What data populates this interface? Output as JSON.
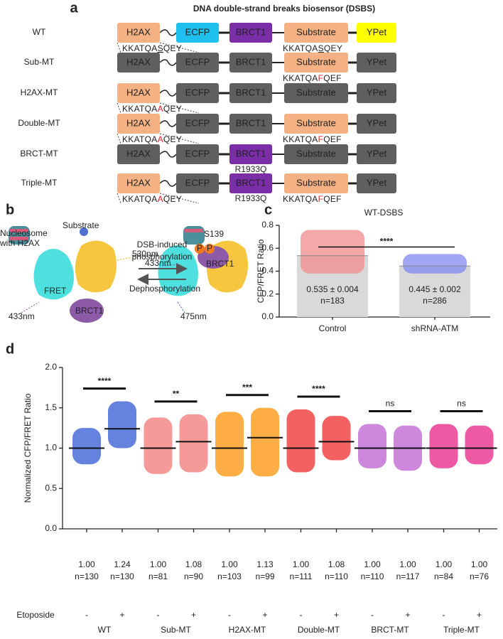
{
  "panel_a": {
    "label": "a",
    "title": "DNA double-strand breaks biosensor (DSBS)",
    "domains": [
      "H2AX",
      "ECFP",
      "BRCT1",
      "Substrate",
      "YPet"
    ],
    "rows": [
      {
        "name": "WT",
        "active": [
          true,
          true,
          true,
          true,
          true
        ],
        "h2ax_seq": {
          "pre": "KKATQA",
          "site": "S",
          "post": "QEY",
          "mutant": false
        },
        "substrate_seq": {
          "pre": "KKATQA",
          "site": "S",
          "post": "QEY",
          "mutant": false
        }
      },
      {
        "name": "Sub-MT",
        "active": [
          false,
          false,
          false,
          true,
          false
        ],
        "substrate_seq": {
          "pre": "KKATQA",
          "site": "F",
          "post": "QEF",
          "mutant": true
        }
      },
      {
        "name": "H2AX-MT",
        "active": [
          true,
          false,
          false,
          false,
          false
        ],
        "h2ax_seq": {
          "pre": "KKATQA",
          "site": "A",
          "post": "QEY",
          "mutant": true
        }
      },
      {
        "name": "Double-MT",
        "active": [
          true,
          false,
          false,
          true,
          false
        ],
        "h2ax_seq": {
          "pre": "KKATQA",
          "site": "A",
          "post": "QEY",
          "mutant": true
        },
        "substrate_seq": {
          "pre": "KKATQA",
          "site": "F",
          "post": "QEF",
          "mutant": true
        }
      },
      {
        "name": "BRCT-MT",
        "active": [
          false,
          false,
          true,
          false,
          false
        ],
        "brct_mutation": "R1933Q"
      },
      {
        "name": "Triple-MT",
        "active": [
          true,
          false,
          true,
          true,
          false
        ],
        "h2ax_seq": {
          "pre": "KKATQA",
          "site": "A",
          "post": "QEY",
          "mutant": true
        },
        "brct_mutation": "R1933Q",
        "substrate_seq": {
          "pre": "KKATQA",
          "site": "F",
          "post": "QEF",
          "mutant": true
        }
      }
    ]
  },
  "panel_b": {
    "label": "b",
    "nucleosome": [
      "Nucleosome",
      "with H2AX"
    ],
    "substrate": "Substrate",
    "emission_yellow": "530nm",
    "fret": "FRET",
    "excitation_left": "433nm",
    "brct_left": "BRCT1",
    "forward": [
      "DSB-induced",
      "phosphorylation"
    ],
    "reverse": "Dephosphorylation",
    "site": "S139",
    "phospho": [
      "P",
      "P"
    ],
    "excitation_right": "433nm",
    "brct_right": "BRCT1",
    "emission_cyan": "475nm"
  },
  "chart_data": [
    {
      "type": "bar",
      "label": "c",
      "title": "WT-DSBS",
      "y_label": "CFP/FRET Ratio",
      "categories": [
        "Control",
        "shRNA-ATM"
      ],
      "values": [
        0.535,
        0.445
      ],
      "value_labels": [
        "0.535 ± 0.004",
        "0.445 ± 0.002"
      ],
      "n_labels": [
        "n=183",
        "n=286"
      ],
      "ranges": [
        [
          0.38,
          0.76
        ],
        [
          0.38,
          0.55
        ]
      ],
      "colors": [
        "#f28b8b",
        "#8088f0"
      ],
      "bar_color": "#d9d9d9",
      "significance": "****",
      "ylim": [
        0,
        0.8
      ],
      "yticks": [
        {
          "value": 0,
          "label": "0.0"
        },
        0.2,
        0.4,
        0.6,
        0.8
      ]
    },
    {
      "type": "dot",
      "label": "d",
      "y_label": "Normalized CFP/FRET Ratio",
      "condition_label": "Etoposide",
      "conditions": [
        "-",
        "+"
      ],
      "groups": [
        {
          "name": "WT",
          "color": "#3d63d6",
          "significance": "****",
          "values": [
            1.0,
            1.24
          ],
          "value_labels": [
            "1.00",
            "1.24"
          ],
          "n_labels": [
            "n=130",
            "n=130"
          ],
          "ranges": [
            [
              0.8,
              1.25
            ],
            [
              1.0,
              1.58
            ]
          ]
        },
        {
          "name": "Sub-MT",
          "color": "#f2807f",
          "significance": "**",
          "values": [
            1.0,
            1.08
          ],
          "value_labels": [
            "1.00",
            "1.08"
          ],
          "n_labels": [
            "n=81",
            "n=90"
          ],
          "ranges": [
            [
              0.68,
              1.38
            ],
            [
              0.7,
              1.42
            ]
          ]
        },
        {
          "name": "H2AX-MT",
          "color": "#ff9a17",
          "significance": "***",
          "values": [
            1.0,
            1.13
          ],
          "value_labels": [
            "1.00",
            "1.13"
          ],
          "n_labels": [
            "n=103",
            "n=99"
          ],
          "ranges": [
            [
              0.65,
              1.45
            ],
            [
              0.65,
              1.5
            ]
          ]
        },
        {
          "name": "Double-MT",
          "color": "#f03a3a",
          "significance": "****",
          "values": [
            1.0,
            1.08
          ],
          "value_labels": [
            "1.00",
            "1.08"
          ],
          "n_labels": [
            "n=111",
            "n=110"
          ],
          "ranges": [
            [
              0.7,
              1.48
            ],
            [
              0.85,
              1.4
            ]
          ]
        },
        {
          "name": "BRCT-MT",
          "color": "#c06ad6",
          "significance": "ns",
          "values": [
            1.0,
            1.0
          ],
          "value_labels": [
            "1.00",
            "1.00"
          ],
          "n_labels": [
            "n=110",
            "n=117"
          ],
          "ranges": [
            [
              0.75,
              1.3
            ],
            [
              0.72,
              1.28
            ]
          ]
        },
        {
          "name": "Triple-MT",
          "color": "#e8308c",
          "significance": "ns",
          "values": [
            1.0,
            1.0
          ],
          "value_labels": [
            "1.00",
            "1.00"
          ],
          "n_labels": [
            "n=84",
            "n=76"
          ],
          "ranges": [
            [
              0.75,
              1.3
            ],
            [
              0.8,
              1.28
            ]
          ]
        }
      ],
      "ylim": [
        0,
        2
      ],
      "yticks": [
        {
          "value": 0,
          "label": "0.0"
        },
        0.5,
        {
          "value": 1,
          "label": "1.0"
        },
        1.5,
        {
          "value": 2,
          "label": "2.0"
        }
      ]
    }
  ]
}
